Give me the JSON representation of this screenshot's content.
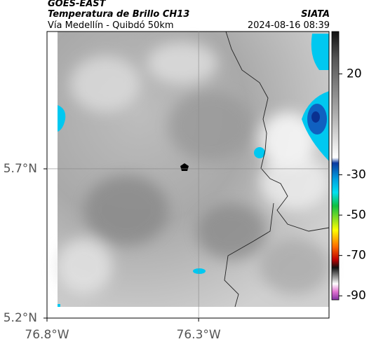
{
  "header": {
    "source": "GOES-EAST",
    "product": "Temperatura de Brillo CH13",
    "region": "Vía Medellín - Quibdó 50km",
    "brand": "SIATA",
    "timestamp": "2024-08-16 08:39"
  },
  "map": {
    "lonlim": [
      -76.8,
      -75.87
    ],
    "latlim": [
      5.2,
      6.16
    ],
    "lon_ticks": [
      {
        "value": -76.8,
        "label": "76.8°W"
      },
      {
        "value": -76.3,
        "label": "76.3°W"
      }
    ],
    "lat_ticks": [
      {
        "value": 5.7,
        "label": "5.7°N"
      },
      {
        "value": 5.2,
        "label": "5.2°N"
      }
    ]
  },
  "colorbar": {
    "lim": [
      -92,
      41
    ],
    "ticks": [
      20,
      -30,
      -50,
      -70,
      -90
    ]
  }
}
